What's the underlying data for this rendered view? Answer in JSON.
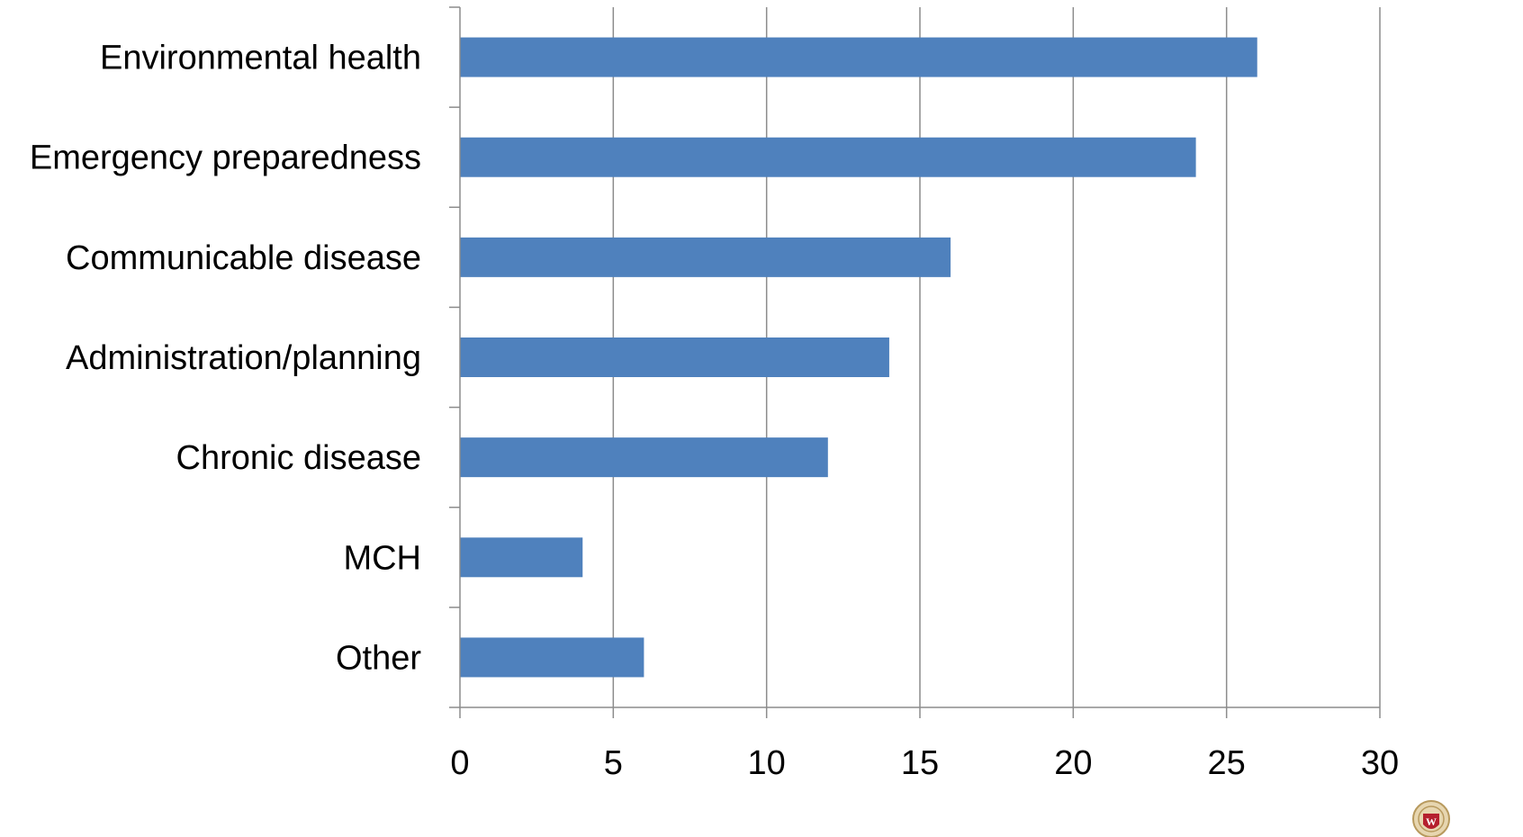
{
  "chart_data": {
    "type": "bar",
    "orientation": "horizontal",
    "categories": [
      "Environmental health",
      "Emergency preparedness",
      "Communicable disease",
      "Administration/planning",
      "Chronic disease",
      "MCH",
      "Other"
    ],
    "values": [
      26,
      24,
      16,
      14,
      12,
      4,
      6
    ],
    "xlim": [
      0,
      30
    ],
    "x_ticks": [
      0,
      5,
      10,
      15,
      20,
      25,
      30
    ],
    "grid": true,
    "legend": "none",
    "title": "",
    "xlabel": "",
    "ylabel": ""
  },
  "colors": {
    "bar": "#4F81BD",
    "grid": "#8c8c8c",
    "axis": "#8c8c8c",
    "text": "#000000"
  },
  "logo": {
    "icon": "university-seal-icon",
    "accent": "#b5202e",
    "letter": "W"
  }
}
